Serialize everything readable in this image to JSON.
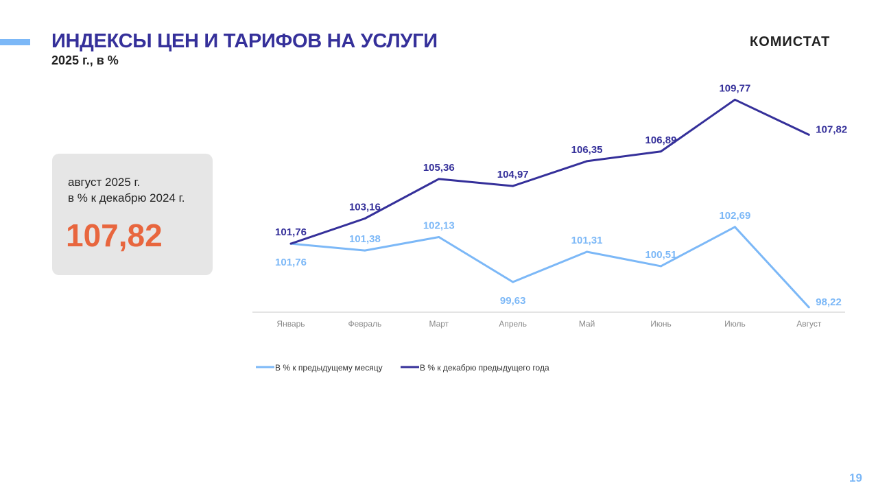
{
  "header": {
    "title": "ИНДЕКСЫ ЦЕН И ТАРИФОВ НА УСЛУГИ",
    "subtitle": "2025 г., в %",
    "logo": "КОМИСТАТ"
  },
  "card": {
    "line1": "август 2025 г.",
    "line2": "в % к декабрю 2024 г.",
    "value": "107,82"
  },
  "page_number": "19",
  "chart_data": {
    "type": "line",
    "categories": [
      "Январь",
      "Февраль",
      "Март",
      "Апрель",
      "Май",
      "Июнь",
      "Июль",
      "Август"
    ],
    "series": [
      {
        "name": "В % к предыдущему месяцу",
        "color": "#7cb8f7",
        "values": [
          101.76,
          101.38,
          102.13,
          99.63,
          101.31,
          100.51,
          102.69,
          98.22
        ],
        "labels": [
          "101,76",
          "101,38",
          "102,13",
          "99,63",
          "101,31",
          "100,51",
          "102,69",
          "98,22"
        ]
      },
      {
        "name": "В % к декабрю предыдущего года",
        "color": "#35309a",
        "values": [
          101.76,
          103.16,
          105.36,
          104.97,
          106.35,
          106.89,
          109.77,
          107.82
        ],
        "labels": [
          "101,76",
          "103,16",
          "105,36",
          "104,97",
          "106,35",
          "106,89",
          "109,77",
          "107,82"
        ]
      }
    ],
    "ylim": [
      97.95,
      110.5
    ],
    "grid": false,
    "legend": "bottom-left",
    "xlabel": "",
    "ylabel": ""
  }
}
